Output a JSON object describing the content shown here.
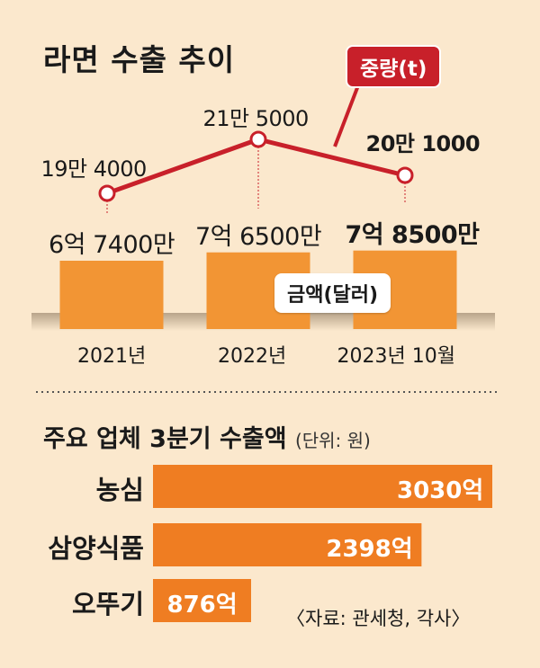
{
  "title": "라면 수출 추이",
  "badge": "중량(t)",
  "legend_amount": "금액(달러)",
  "section2": {
    "title": "주요 업체 3분기 수출액",
    "unit": "(단위: 원)"
  },
  "source": "〈자료: 관세청, 각사〉",
  "colors": {
    "background": "#fbe8cd",
    "bar": "#f29534",
    "line": "#c8202a",
    "hbar": "#ef7d22"
  },
  "chart_data": [
    {
      "type": "bar",
      "categories": [
        "2021년",
        "2022년",
        "2023년 10월"
      ],
      "values": [
        674000000,
        765000000,
        785000000
      ],
      "value_labels": [
        "6억 7400만",
        "7억 6500만",
        "7억 8500만"
      ],
      "series_name": "금액(달러)"
    },
    {
      "type": "line",
      "categories": [
        "2021년",
        "2022년",
        "2023년 10월"
      ],
      "values": [
        194000,
        215000,
        201000
      ],
      "value_labels": [
        "19만 4000",
        "21만 5000",
        "20만 1000"
      ],
      "series_name": "중량(t)"
    },
    {
      "type": "bar",
      "orientation": "horizontal",
      "title": "주요 업체 3분기 수출액",
      "categories": [
        "농심",
        "삼양식품",
        "오뚜기"
      ],
      "values": [
        3030,
        2398,
        876
      ],
      "value_labels": [
        "3030억",
        "2398억",
        "876억"
      ]
    }
  ]
}
